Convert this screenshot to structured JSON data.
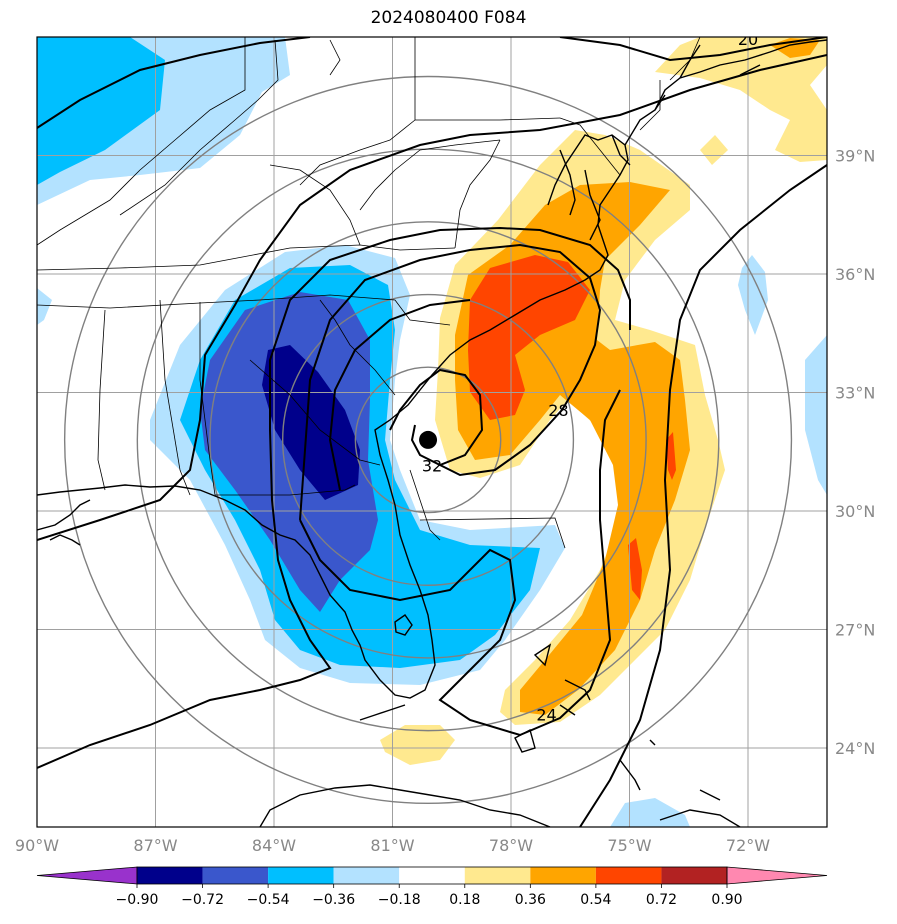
{
  "title": "2024080400 F084",
  "map": {
    "lon_range": [
      -90,
      -70
    ],
    "lat_range": [
      22,
      42
    ],
    "lon_ticks": [
      {
        "value": -90,
        "label": "90°W"
      },
      {
        "value": -87,
        "label": "87°W"
      },
      {
        "value": -84,
        "label": "84°W"
      },
      {
        "value": -81,
        "label": "81°W"
      },
      {
        "value": -78,
        "label": "78°W"
      },
      {
        "value": -75,
        "label": "75°W"
      },
      {
        "value": -72,
        "label": "72°W"
      }
    ],
    "lat_ticks": [
      {
        "value": 24,
        "label": "24°N"
      },
      {
        "value": 27,
        "label": "27°N"
      },
      {
        "value": 30,
        "label": "30°N"
      },
      {
        "value": 33,
        "label": "33°N"
      },
      {
        "value": 36,
        "label": "36°N"
      },
      {
        "value": 39,
        "label": "39°N"
      }
    ],
    "center_marker": {
      "lon": -80.1,
      "lat": 31.8
    },
    "range_rings_deg": [
      2,
      4,
      6,
      8,
      10
    ],
    "contour_labels": [
      {
        "text": "20",
        "lon": -72.0,
        "lat": 41.8
      },
      {
        "text": "28",
        "lon": -76.8,
        "lat": 32.4
      },
      {
        "text": "32",
        "lon": -80.0,
        "lat": 31.0
      },
      {
        "text": "24",
        "lon": -77.1,
        "lat": 24.7
      }
    ]
  },
  "colorbar": {
    "levels": [
      "−0.90",
      "−0.72",
      "−0.54",
      "−0.36",
      "−0.18",
      "0.18",
      "0.36",
      "0.54",
      "0.72",
      "0.90"
    ],
    "colors": [
      "#9932cc",
      "#00008b",
      "#3a57cc",
      "#00bfff",
      "#b3e2ff",
      "#ffffff",
      "#ffe98f",
      "#ffa500",
      "#ff4500",
      "#b22222",
      "#ff88b0"
    ]
  },
  "colors": {
    "deep_blue": "#00008b",
    "mid_blue": "#3a57cc",
    "blue": "#00bfff",
    "light_blue": "#b3e2ff",
    "light_yellow": "#ffe98f",
    "orange": "#ffa500",
    "red_orange": "#ff4500",
    "red": "#d62a1e",
    "grid": "#a0a0a0",
    "ring": "#808080"
  }
}
